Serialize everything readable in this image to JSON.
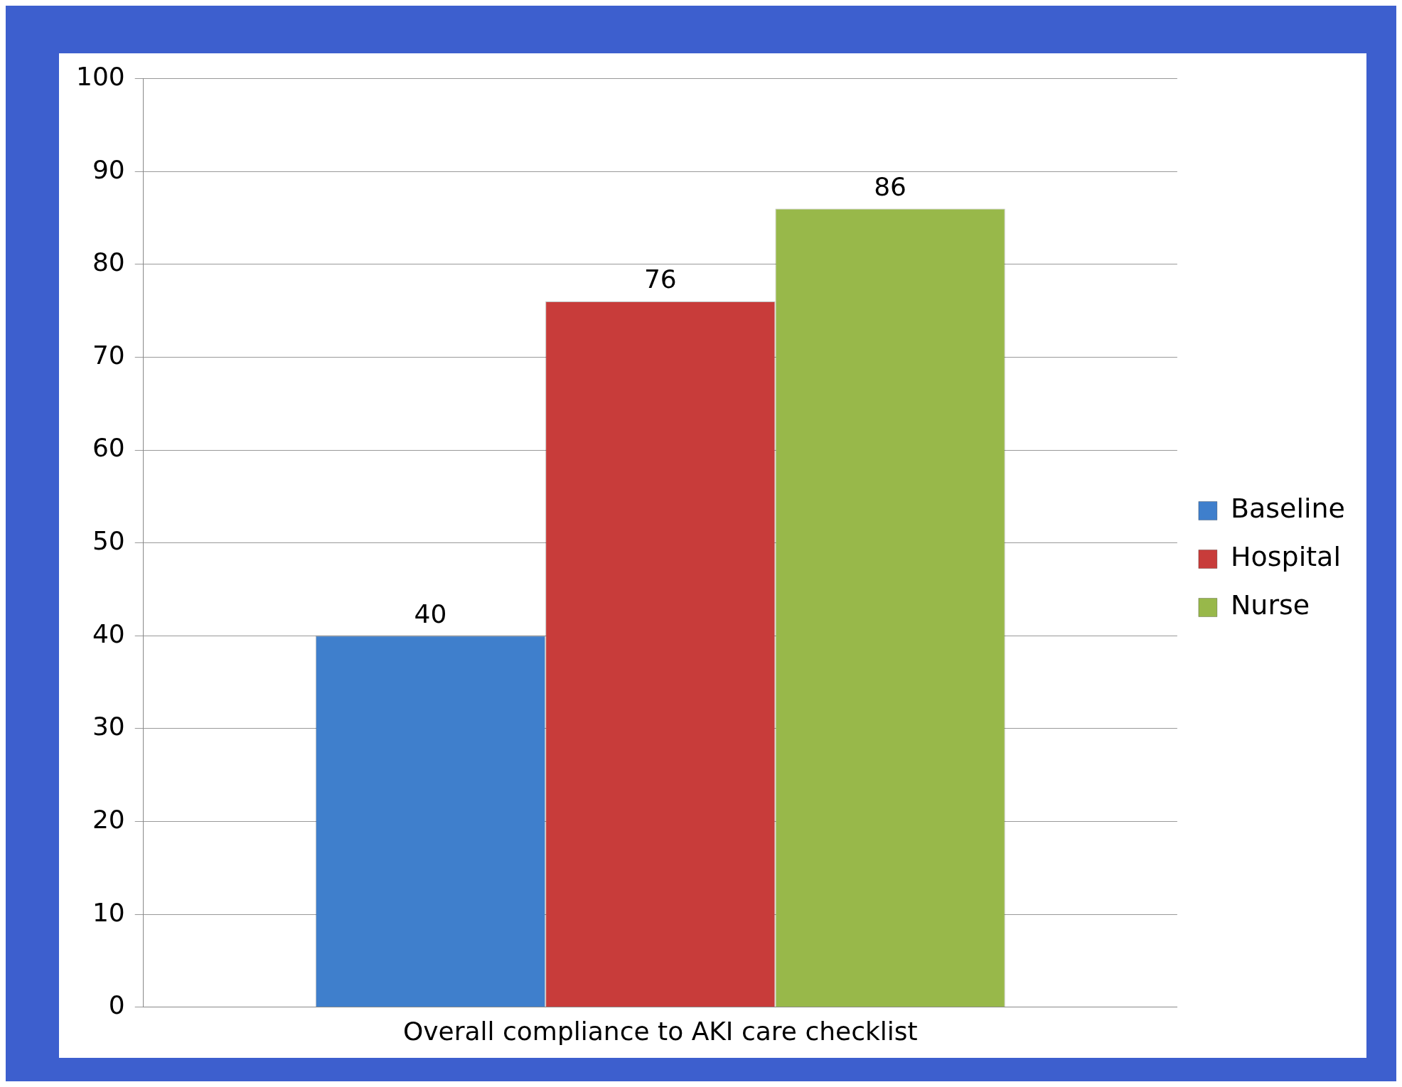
{
  "chart_data": {
    "type": "bar",
    "categories": [
      "Overall compliance to AKI care checklist"
    ],
    "series": [
      {
        "name": "Baseline",
        "color": "#3f7fcc",
        "values": [
          40
        ]
      },
      {
        "name": "Hospital",
        "color": "#c83c3a",
        "values": [
          76
        ]
      },
      {
        "name": "Nurse",
        "color": "#98b84a",
        "values": [
          86
        ]
      }
    ],
    "ylim": [
      0,
      100
    ],
    "yticks": [
      0,
      10,
      20,
      30,
      40,
      50,
      60,
      70,
      80,
      90,
      100
    ],
    "grid": "y",
    "legend": "right",
    "data_labels": true
  }
}
